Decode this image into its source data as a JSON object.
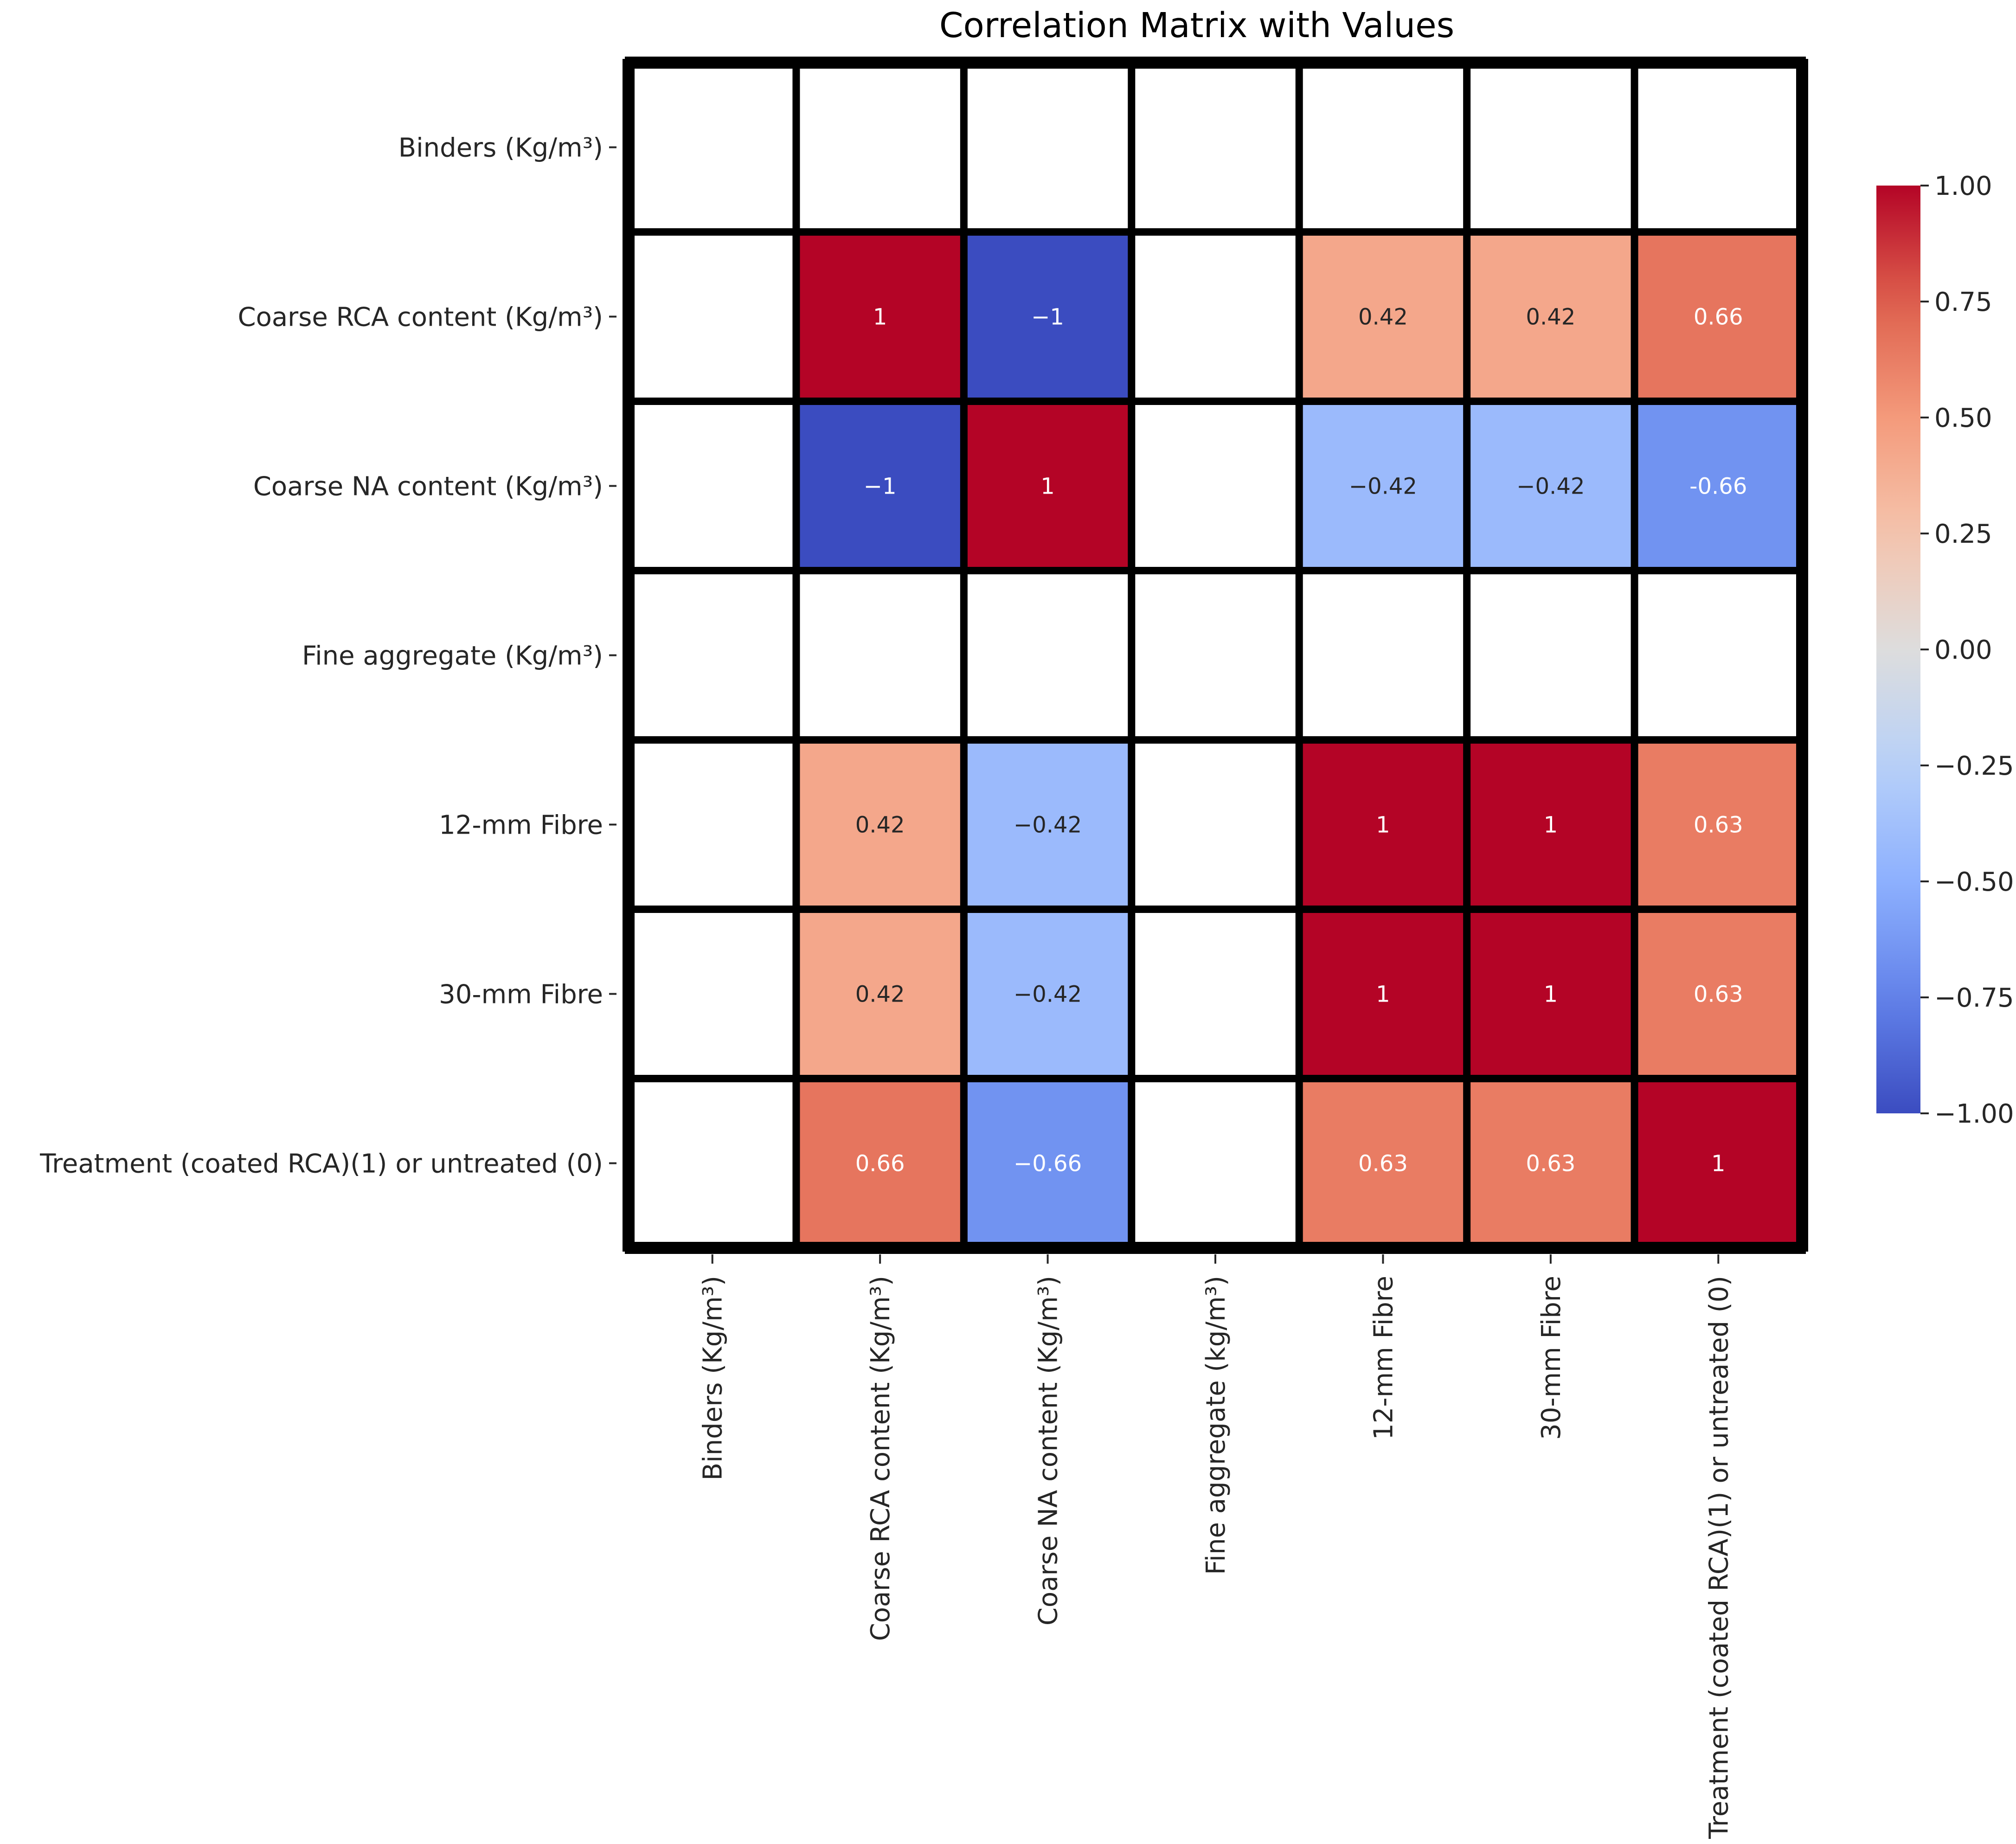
{
  "chart_data": {
    "type": "heatmap",
    "title": "Correlation Matrix with Values",
    "row_labels": [
      "Binders (Kg/m³)",
      "Coarse RCA content (Kg/m³)",
      "Coarse NA content (Kg/m³)",
      "Fine aggregate (Kg/m³)",
      "12-mm Fibre",
      "30-mm Fibre",
      "Treatment (coated RCA)(1) or untreated (0)"
    ],
    "col_labels": [
      "Binders (Kg/m³)",
      "Coarse RCA content (Kg/m³)",
      "Coarse NA content (Kg/m³)",
      "Fine aggregate (kg/m³)",
      "12-mm Fibre",
      "30-mm Fibre",
      "Treatment (coated RCA)(1) or untreated (0)"
    ],
    "values": [
      [
        null,
        null,
        null,
        null,
        null,
        null,
        null
      ],
      [
        null,
        1,
        -1,
        null,
        0.42,
        0.42,
        0.66
      ],
      [
        null,
        -1,
        1,
        null,
        -0.42,
        -0.42,
        -0.66
      ],
      [
        null,
        null,
        null,
        null,
        null,
        null,
        null
      ],
      [
        null,
        0.42,
        -0.42,
        null,
        1,
        1,
        0.63
      ],
      [
        null,
        0.42,
        -0.42,
        null,
        1,
        1,
        0.63
      ],
      [
        null,
        0.66,
        -0.66,
        null,
        0.63,
        0.63,
        1
      ]
    ],
    "cell_labels": [
      [
        "",
        "",
        "",
        "",
        "",
        "",
        ""
      ],
      [
        "",
        "1",
        "−1",
        "",
        "0.42",
        "0.42",
        "0.66"
      ],
      [
        "",
        "−1",
        "1",
        "",
        "−0.42",
        "−0.42",
        "-0.66"
      ],
      [
        "",
        "",
        "",
        "",
        "",
        "",
        ""
      ],
      [
        "",
        "0.42",
        "−0.42",
        "",
        "1",
        "1",
        "0.63"
      ],
      [
        "",
        "0.42",
        "−0.42",
        "",
        "1",
        "1",
        "0.63"
      ],
      [
        "",
        "0.66",
        "−0.66",
        "",
        "0.63",
        "0.63",
        "1"
      ]
    ],
    "colormap": "coolwarm",
    "vmin": -1,
    "vmax": 1,
    "colorbar_ticks": [
      1.0,
      0.75,
      0.5,
      0.25,
      0.0,
      -0.25,
      -0.5,
      -0.75,
      -1.0
    ],
    "colorbar_tick_labels": [
      "1.00",
      "0.75",
      "0.50",
      "0.25",
      "0.00",
      "−0.25",
      "−0.50",
      "−0.75",
      "−1.00"
    ],
    "colorbar_placement": "right"
  },
  "colors": {
    "background": "#ffffff",
    "grid_line": "#000000",
    "text_dark": "#262626",
    "text_light": "#ffffff",
    "title": "#333333"
  }
}
